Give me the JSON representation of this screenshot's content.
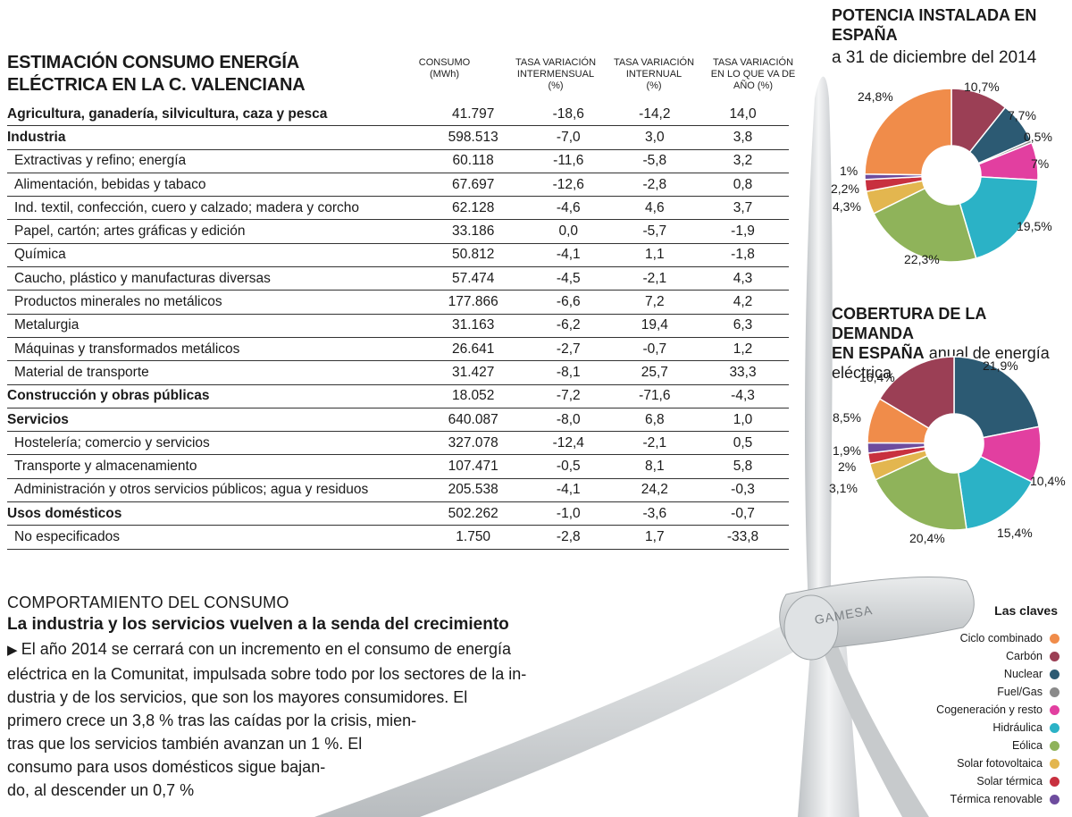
{
  "table": {
    "title_line1": "ESTIMACIÓN CONSUMO ENERGÍA",
    "title_line2": "ELÉCTRICA EN LA C. VALENCIANA",
    "col1_line1": "CONSUMO",
    "col1_line2": "(MWh)",
    "col2_line1": "TASA VARIACIÓN",
    "col2_line2": "INTERMENSUAL",
    "col2_line3": "(%)",
    "col3_line1": "TASA VARIACIÓN",
    "col3_line2": "INTERNUAL",
    "col3_line3": "(%)",
    "col4_line1": "TASA VARIACIÓN",
    "col4_line2": "EN LO QUE VA DE",
    "col4_line3": "AÑO (%)",
    "rows": [
      {
        "label": "Agricultura, ganadería, silvicultura, caza y pesca",
        "consumo": "41.797",
        "intermensual": "-18,6",
        "interanual": "-14,2",
        "anual": "14,0",
        "bold": true
      },
      {
        "label": "Industria",
        "consumo": "598.513",
        "intermensual": "-7,0",
        "interanual": "3,0",
        "anual": "3,8",
        "bold": true
      },
      {
        "label": "Extractivas y refino; energía",
        "consumo": "60.118",
        "intermensual": "-11,6",
        "interanual": "-5,8",
        "anual": "3,2",
        "bold": false
      },
      {
        "label": "Alimentación, bebidas y tabaco",
        "consumo": "67.697",
        "intermensual": "-12,6",
        "interanual": "-2,8",
        "anual": "0,8",
        "bold": false
      },
      {
        "label": "Ind. textil, confección, cuero y calzado; madera y corcho",
        "consumo": "62.128",
        "intermensual": "-4,6",
        "interanual": "4,6",
        "anual": "3,7",
        "bold": false
      },
      {
        "label": "Papel, cartón; artes gráficas y edición",
        "consumo": "33.186",
        "intermensual": "0,0",
        "interanual": "-5,7",
        "anual": "-1,9",
        "bold": false
      },
      {
        "label": "Química",
        "consumo": "50.812",
        "intermensual": "-4,1",
        "interanual": "1,1",
        "anual": "-1,8",
        "bold": false
      },
      {
        "label": "Caucho, plástico y manufacturas diversas",
        "consumo": "57.474",
        "intermensual": "-4,5",
        "interanual": "-2,1",
        "anual": "4,3",
        "bold": false
      },
      {
        "label": "Productos minerales no metálicos",
        "consumo": "177.866",
        "intermensual": "-6,6",
        "interanual": "7,2",
        "anual": "4,2",
        "bold": false
      },
      {
        "label": "Metalurgia",
        "consumo": "31.163",
        "intermensual": "-6,2",
        "interanual": "19,4",
        "anual": "6,3",
        "bold": false
      },
      {
        "label": "Máquinas y transformados metálicos",
        "consumo": "26.641",
        "intermensual": "-2,7",
        "interanual": "-0,7",
        "anual": "1,2",
        "bold": false
      },
      {
        "label": "Material de transporte",
        "consumo": "31.427",
        "intermensual": "-8,1",
        "interanual": "25,7",
        "anual": "33,3",
        "bold": false
      },
      {
        "label": "Construcción y obras públicas",
        "consumo": "18.052",
        "intermensual": "-7,2",
        "interanual": "-71,6",
        "anual": "-4,3",
        "bold": true
      },
      {
        "label": "Servicios",
        "consumo": "640.087",
        "intermensual": "-8,0",
        "interanual": "6,8",
        "anual": "1,0",
        "bold": true
      },
      {
        "label": "Hostelería; comercio y servicios",
        "consumo": "327.078",
        "intermensual": "-12,4",
        "interanual": "-2,1",
        "anual": "0,5",
        "bold": false
      },
      {
        "label": "Transporte y almacenamiento",
        "consumo": "107.471",
        "intermensual": "-0,5",
        "interanual": "8,1",
        "anual": "5,8",
        "bold": false
      },
      {
        "label": "Administración y otros servicios públicos; agua y residuos",
        "consumo": "205.538",
        "intermensual": "-4,1",
        "interanual": "24,2",
        "anual": "-0,3",
        "bold": false
      },
      {
        "label": "Usos domésticos",
        "consumo": "502.262",
        "intermensual": "-1,0",
        "interanual": "-3,6",
        "anual": "-0,7",
        "bold": true
      },
      {
        "label": "No especificados",
        "consumo": "1.750",
        "intermensual": "-2,8",
        "interanual": "1,7",
        "anual": "-33,8",
        "bold": false
      }
    ]
  },
  "comment": {
    "kicker": "COMPORTAMIENTO DEL CONSUMO",
    "headline": "La industria y los servicios vuelven a la senda del crecimiento",
    "arrow": "▶",
    "lines": [
      "El año 2014 se cerrará con un incremento en el consumo de energía",
      "eléctrica en la Comunitat, impulsada sobre todo por los sectores de la in-",
      "dustria y de los servicios, que son los mayores consumidores. El",
      "primero crece un 3,8 % tras las caídas por la crisis, mien-",
      "tras que los servicios también avanzan un 1 %. El",
      "consumo para usos domésticos sigue bajan-",
      "do, al descender un 0,7 %"
    ]
  },
  "chart_data": [
    {
      "type": "pie",
      "title": "POTENCIA INSTALADA EN ESPAÑA",
      "subtitle": "a 31 de diciembre del 2014",
      "categories": [
        "Carbón",
        "Nuclear",
        "Fuel/Gas",
        "Cogeneración y resto",
        "Hidráulica",
        "Eólica",
        "Solar fotovoltaica",
        "Solar térmica",
        "Térmica renovable",
        "Ciclo combinado"
      ],
      "values": [
        10.7,
        7.7,
        0.5,
        7,
        19.5,
        22.3,
        4.3,
        2.2,
        1,
        24.8
      ],
      "labels": [
        "10,7%",
        "7,7%",
        "0,5%",
        "7%",
        "19,5%",
        "22,3%",
        "4,3%",
        "2,2%",
        "1%",
        "24,8%"
      ]
    },
    {
      "type": "pie",
      "title": "COBERTURA DE LA DEMANDA EN ESPAÑA",
      "subtitle": "anual de energía eléctrica",
      "categories": [
        "Nuclear",
        "Cogeneración y resto",
        "Hidráulica",
        "Eólica",
        "Solar fotovoltaica",
        "Solar térmica",
        "Térmica renovable",
        "Ciclo combinado",
        "Carbón"
      ],
      "values": [
        21.9,
        10.4,
        15.4,
        20.4,
        3.1,
        2,
        1.9,
        8.5,
        16.4
      ],
      "labels": [
        "21,9%",
        "10,4%",
        "15,4%",
        "20,4%",
        "3,1%",
        "2%",
        "1,9%",
        "8,5%",
        "16,4%"
      ]
    }
  ],
  "pie1_title_line1": "POTENCIA INSTALADA EN",
  "pie1_title_line2": "ESPAÑA",
  "pie1_subtitle": "a 31 de diciembre del 2014",
  "pie2_title_line1": "COBERTURA DE LA DEMANDA",
  "pie2_title_bold2": "EN ESPAÑA",
  "pie2_title_rest2": " anual de energía",
  "pie2_title_line3": "eléctrica",
  "legend": {
    "title": "Las claves",
    "items": [
      {
        "name": "Ciclo combinado",
        "color": "#f08c4a"
      },
      {
        "name": "Carbón",
        "color": "#9b3f55"
      },
      {
        "name": "Nuclear",
        "color": "#2c5a73"
      },
      {
        "name": "Fuel/Gas",
        "color": "#8a8a8a"
      },
      {
        "name": "Cogeneración y resto",
        "color": "#e23fa0"
      },
      {
        "name": "Hidráulica",
        "color": "#2bb2c6"
      },
      {
        "name": "Eólica",
        "color": "#8fb35a"
      },
      {
        "name": "Solar fotovoltaica",
        "color": "#e3b64f"
      },
      {
        "name": "Solar térmica",
        "color": "#c8303f"
      },
      {
        "name": "Térmica renovable",
        "color": "#6e4c9e"
      }
    ]
  },
  "turbine_brand": "GAMESA"
}
